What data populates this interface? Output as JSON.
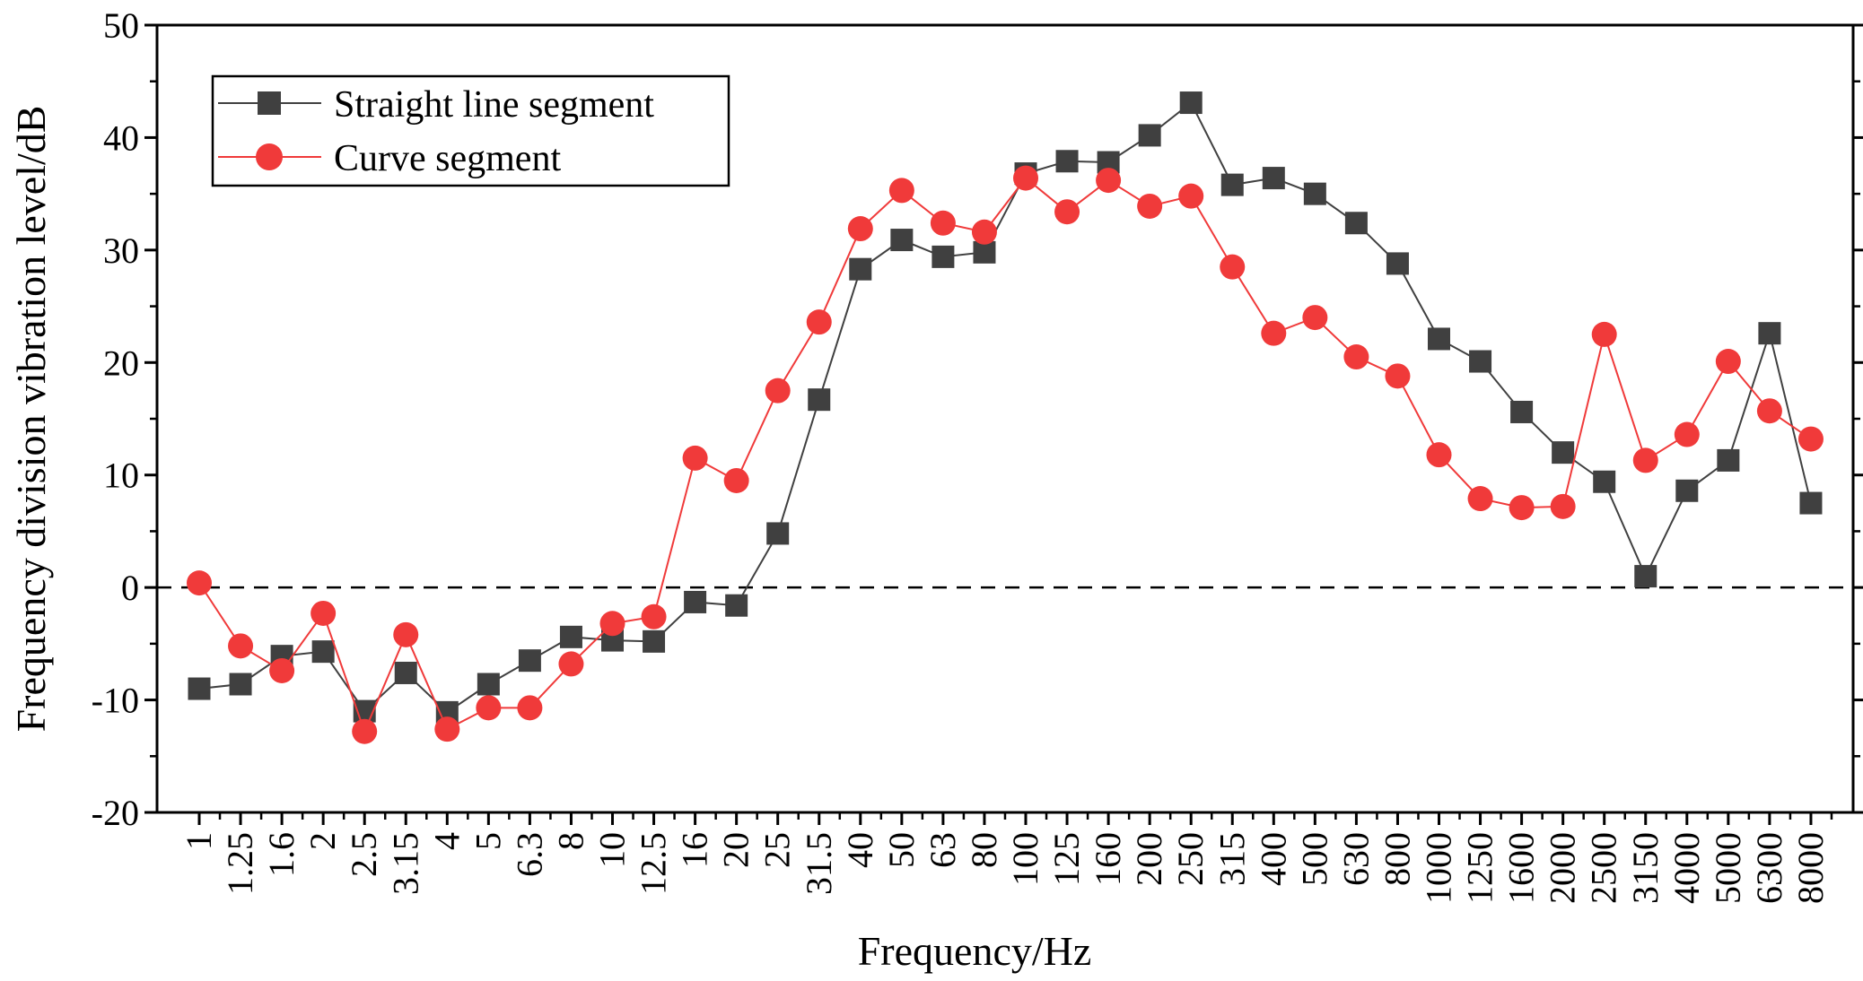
{
  "chart_data": {
    "type": "line",
    "title": "",
    "xlabel": "Frequency/Hz",
    "ylabel": "Frequency division vibration level/dB",
    "ylim": [
      -20,
      50
    ],
    "yticks": [
      "-20",
      "-10",
      "0",
      "10",
      "20",
      "30",
      "40",
      "50"
    ],
    "reference_line": 0,
    "legend_position": "top-left",
    "categories": [
      "1",
      "1.25",
      "1.6",
      "2",
      "2.5",
      "3.15",
      "4",
      "5",
      "6.3",
      "8",
      "10",
      "12.5",
      "16",
      "20",
      "25",
      "31.5",
      "40",
      "50",
      "63",
      "80",
      "100",
      "125",
      "160",
      "200",
      "250",
      "315",
      "400",
      "500",
      "630",
      "800",
      "1000",
      "1250",
      "1600",
      "2000",
      "2500",
      "3150",
      "4000",
      "5000",
      "6300",
      "8000"
    ],
    "series": [
      {
        "name": "Straight line segment",
        "color": "#404040",
        "marker": "square",
        "values": [
          -9.0,
          -8.6,
          -6.1,
          -5.7,
          -11.0,
          -7.6,
          -11.1,
          -8.6,
          -6.5,
          -4.4,
          -4.7,
          -4.8,
          -1.3,
          -1.6,
          4.8,
          16.7,
          28.3,
          30.9,
          29.4,
          29.8,
          36.8,
          37.9,
          37.8,
          40.2,
          43.1,
          35.8,
          36.4,
          35.0,
          32.4,
          28.8,
          22.1,
          20.1,
          15.6,
          12.0,
          9.4,
          1.0,
          8.6,
          11.3,
          22.6,
          7.5
        ]
      },
      {
        "name": "Curve segment",
        "color": "#f03a3a",
        "marker": "circle",
        "values": [
          0.4,
          -5.2,
          -7.4,
          -2.3,
          -12.8,
          -4.2,
          -12.6,
          -10.7,
          -10.7,
          -6.8,
          -3.2,
          -2.6,
          11.5,
          9.5,
          17.5,
          23.6,
          31.9,
          35.3,
          32.4,
          31.6,
          36.4,
          33.4,
          36.2,
          33.9,
          34.8,
          28.5,
          22.6,
          24.0,
          20.5,
          18.8,
          11.8,
          7.9,
          7.1,
          7.2,
          22.5,
          11.3,
          13.6,
          20.1,
          15.7,
          13.2
        ]
      }
    ]
  }
}
